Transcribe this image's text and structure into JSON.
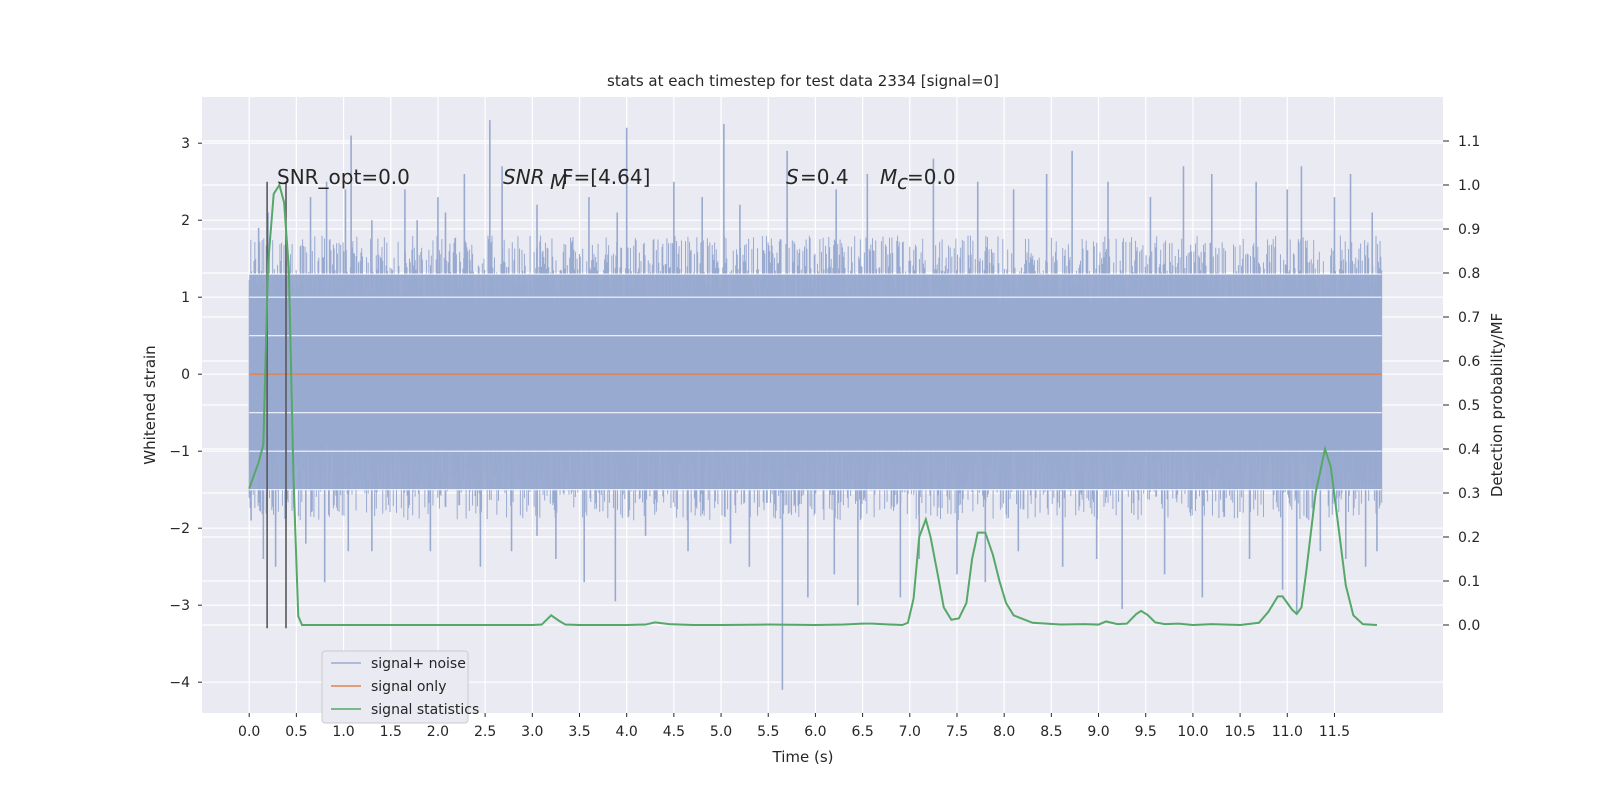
{
  "chart_data": {
    "type": "line",
    "title": "stats at each timestep for test data 2334 [signal=0]",
    "xlabel": "Time (s)",
    "ylabel": "Whitened strain",
    "y2label": "Detection probability/MF",
    "xlim": [
      -0.5,
      12.65
    ],
    "ylim": [
      -4.4,
      3.6
    ],
    "y2lim": [
      -0.2,
      1.2
    ],
    "x_ticks": [
      0.0,
      0.5,
      1.0,
      1.5,
      2.0,
      2.5,
      3.0,
      3.5,
      4.0,
      4.5,
      5.0,
      5.5,
      6.0,
      6.5,
      7.0,
      7.5,
      8.0,
      8.5,
      9.0,
      9.5,
      10.0,
      10.5,
      11.0,
      11.5
    ],
    "x_tick_labels": [
      "0.0",
      "0.5",
      "1.0",
      "1.5",
      "2.0",
      "2.5",
      "3.0",
      "3.5",
      "4.0",
      "4.5",
      "5.0",
      "5.5",
      "6.0",
      "6.5",
      "7.0",
      "7.5",
      "8.0",
      "8.5",
      "9.0",
      "9.5",
      "10.0",
      "10.5",
      "11.0",
      "11.5"
    ],
    "y_ticks": [
      -4,
      -3,
      -2,
      -1,
      0,
      1,
      2,
      3
    ],
    "y_tick_labels": [
      "−4",
      "−3",
      "−2",
      "−1",
      "0",
      "1",
      "2",
      "3"
    ],
    "y2_ticks": [
      0.0,
      0.1,
      0.2,
      0.3,
      0.4,
      0.5,
      0.6,
      0.7,
      0.8,
      0.9,
      1.0,
      1.1
    ],
    "y2_tick_labels": [
      "0.0",
      "0.1",
      "0.2",
      "0.3",
      "0.4",
      "0.5",
      "0.6",
      "0.7",
      "0.8",
      "0.9",
      "1.0",
      "1.1"
    ],
    "grid": true,
    "legend_position": "lower-left",
    "annotations": [
      "SNR_opt=0.0",
      "SNR",
      "M",
      "F=[4.64]",
      "S",
      "=0.4",
      "M",
      "c",
      "=0.0"
    ],
    "vertical_markers": {
      "x": [
        0.19,
        0.39
      ],
      "y_range": [
        -3.3,
        2.5
      ],
      "color": "#595959"
    },
    "series": [
      {
        "name": "signal+ noise",
        "color": "#99aad0",
        "description_type": "dense noise",
        "x_range": [
          0.0,
          12.0
        ],
        "spikes": [
          [
            0.1,
            1.9
          ],
          [
            0.2,
            2.1
          ],
          [
            0.65,
            2.3
          ],
          [
            0.82,
            2.5
          ],
          [
            1.02,
            2.4
          ],
          [
            1.08,
            3.1
          ],
          [
            1.3,
            2.0
          ],
          [
            1.65,
            2.4
          ],
          [
            1.78,
            2.0
          ],
          [
            2.0,
            2.3
          ],
          [
            2.08,
            2.1
          ],
          [
            2.28,
            2.6
          ],
          [
            2.55,
            3.3
          ],
          [
            2.68,
            2.7
          ],
          [
            3.05,
            2.2
          ],
          [
            3.6,
            2.3
          ],
          [
            3.9,
            2.1
          ],
          [
            4.0,
            3.2
          ],
          [
            4.5,
            2.5
          ],
          [
            4.8,
            2.3
          ],
          [
            5.03,
            3.25
          ],
          [
            5.2,
            2.2
          ],
          [
            5.7,
            2.9
          ],
          [
            6.22,
            2.4
          ],
          [
            6.55,
            2.6
          ],
          [
            7.25,
            2.8
          ],
          [
            7.72,
            2.5
          ],
          [
            8.1,
            2.4
          ],
          [
            8.45,
            2.6
          ],
          [
            8.72,
            2.9
          ],
          [
            9.1,
            2.5
          ],
          [
            9.55,
            2.3
          ],
          [
            9.9,
            2.7
          ],
          [
            10.2,
            2.6
          ],
          [
            10.67,
            2.5
          ],
          [
            11.0,
            2.4
          ],
          [
            11.15,
            2.7
          ],
          [
            11.5,
            2.3
          ],
          [
            11.67,
            2.6
          ],
          [
            11.9,
            2.1
          ]
        ],
        "dips": [
          [
            0.02,
            -1.9
          ],
          [
            0.15,
            -2.4
          ],
          [
            0.28,
            -2.5
          ],
          [
            0.6,
            -2.2
          ],
          [
            0.8,
            -2.7
          ],
          [
            1.05,
            -2.3
          ],
          [
            1.3,
            -2.3
          ],
          [
            1.92,
            -2.3
          ],
          [
            2.45,
            -2.5
          ],
          [
            2.78,
            -2.3
          ],
          [
            3.05,
            -2.1
          ],
          [
            3.25,
            -2.4
          ],
          [
            3.55,
            -2.7
          ],
          [
            3.88,
            -2.95
          ],
          [
            4.2,
            -2.1
          ],
          [
            4.65,
            -2.3
          ],
          [
            5.1,
            -2.2
          ],
          [
            5.3,
            -2.5
          ],
          [
            5.65,
            -4.1
          ],
          [
            5.92,
            -2.9
          ],
          [
            6.2,
            -2.6
          ],
          [
            6.45,
            -3.0
          ],
          [
            6.9,
            -2.9
          ],
          [
            7.1,
            -2.4
          ],
          [
            7.5,
            -2.6
          ],
          [
            7.8,
            -2.7
          ],
          [
            8.15,
            -2.3
          ],
          [
            8.62,
            -2.5
          ],
          [
            8.98,
            -2.4
          ],
          [
            9.25,
            -3.05
          ],
          [
            9.7,
            -2.6
          ],
          [
            10.1,
            -2.9
          ],
          [
            10.6,
            -2.4
          ],
          [
            10.95,
            -2.8
          ],
          [
            11.1,
            -3.1
          ],
          [
            11.35,
            -2.3
          ],
          [
            11.62,
            -2.4
          ],
          [
            11.83,
            -2.5
          ],
          [
            11.95,
            -2.3
          ]
        ]
      },
      {
        "name": "signal only",
        "color": "#dd8452",
        "x": [
          0.0,
          12.0
        ],
        "y": [
          0.0,
          0.0
        ]
      },
      {
        "name": "signal statistics",
        "color": "#55a868",
        "axis": "right",
        "x": [
          0.0,
          0.1,
          0.15,
          0.2,
          0.26,
          0.32,
          0.37,
          0.42,
          0.47,
          0.52,
          0.56,
          0.62,
          0.7,
          1.0,
          1.5,
          2.0,
          2.5,
          3.0,
          3.1,
          3.2,
          3.28,
          3.35,
          3.5,
          4.0,
          4.2,
          4.3,
          4.45,
          4.7,
          5.0,
          5.5,
          6.0,
          6.3,
          6.5,
          6.6,
          6.8,
          6.92,
          6.98,
          7.04,
          7.1,
          7.17,
          7.22,
          7.3,
          7.36,
          7.44,
          7.52,
          7.6,
          7.66,
          7.72,
          7.8,
          7.88,
          7.95,
          8.02,
          8.1,
          8.3,
          8.6,
          8.85,
          9.0,
          9.08,
          9.2,
          9.3,
          9.4,
          9.45,
          9.52,
          9.6,
          9.7,
          9.85,
          10.0,
          10.2,
          10.5,
          10.7,
          10.8,
          10.9,
          10.95,
          11.0,
          11.05,
          11.1,
          11.15,
          11.2,
          11.3,
          11.4,
          11.46,
          11.55,
          11.62,
          11.7,
          11.8,
          11.95
        ],
        "y": [
          0.31,
          0.37,
          0.41,
          0.82,
          0.98,
          1.0,
          0.96,
          0.81,
          0.33,
          0.02,
          0.0,
          0.0,
          0.0,
          0.0,
          0.0,
          0.0,
          0.0,
          0.0,
          0.001,
          0.022,
          0.01,
          0.001,
          0.0,
          0.0,
          0.001,
          0.006,
          0.002,
          0.0,
          0.0,
          0.001,
          0.0,
          0.001,
          0.003,
          0.003,
          0.001,
          0.0,
          0.005,
          0.06,
          0.2,
          0.24,
          0.2,
          0.11,
          0.04,
          0.012,
          0.015,
          0.05,
          0.15,
          0.21,
          0.21,
          0.16,
          0.1,
          0.05,
          0.022,
          0.005,
          0.001,
          0.002,
          0.001,
          0.008,
          0.002,
          0.003,
          0.025,
          0.032,
          0.023,
          0.006,
          0.002,
          0.003,
          0.0,
          0.002,
          0.0,
          0.005,
          0.03,
          0.065,
          0.065,
          0.05,
          0.035,
          0.025,
          0.04,
          0.12,
          0.3,
          0.4,
          0.36,
          0.21,
          0.09,
          0.022,
          0.002,
          0.0
        ]
      }
    ]
  }
}
